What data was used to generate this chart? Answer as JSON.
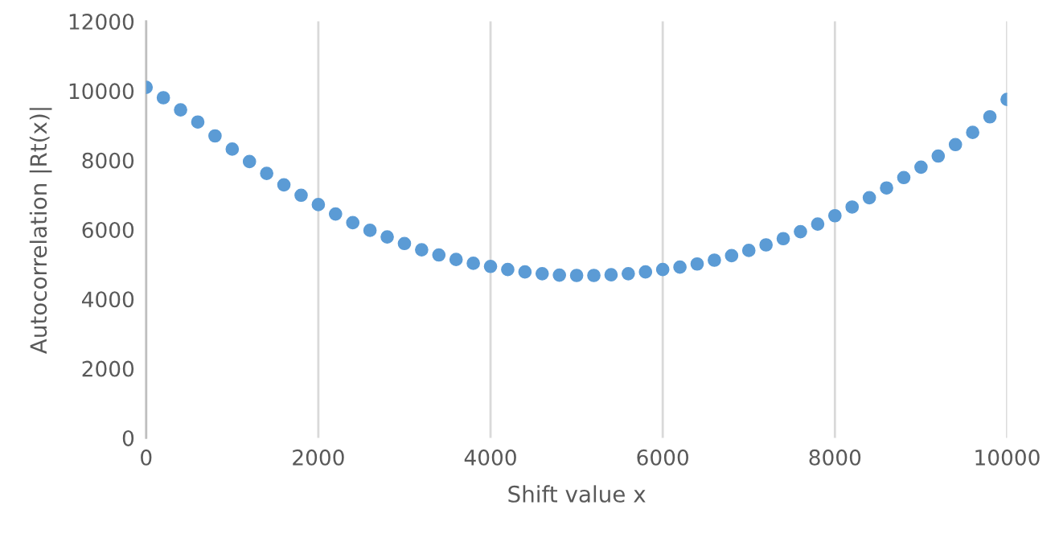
{
  "chart_data": {
    "type": "scatter",
    "xlabel": "Shift value x",
    "ylabel": "Autocorrelation |Rt(x)|",
    "x": [
      0,
      200,
      400,
      600,
      800,
      1000,
      1200,
      1400,
      1600,
      1800,
      2000,
      2200,
      2400,
      2600,
      2800,
      3000,
      3200,
      3400,
      3600,
      3800,
      4000,
      4200,
      4400,
      4600,
      4800,
      5000,
      5200,
      5400,
      5600,
      5800,
      6000,
      6200,
      6400,
      6600,
      6800,
      7000,
      7200,
      7400,
      7600,
      7800,
      8000,
      8200,
      8400,
      8600,
      8800,
      9000,
      9200,
      9400,
      9600,
      9800,
      10000
    ],
    "series": [
      {
        "color": "#5b9bd5",
        "values": [
          10100,
          9800,
          9450,
          9100,
          8700,
          8320,
          7960,
          7620,
          7290,
          6990,
          6720,
          6450,
          6200,
          5980,
          5790,
          5600,
          5420,
          5270,
          5140,
          5030,
          4940,
          4850,
          4780,
          4730,
          4690,
          4680,
          4680,
          4700,
          4730,
          4780,
          4850,
          4920,
          5010,
          5120,
          5250,
          5400,
          5560,
          5740,
          5940,
          6160,
          6400,
          6650,
          6920,
          7200,
          7500,
          7800,
          8120,
          8450,
          8800,
          9250,
          9750
        ]
      }
    ],
    "xlim": [
      0,
      10000
    ],
    "xticks": [
      0,
      2000,
      4000,
      6000,
      8000,
      10000
    ],
    "ylim": [
      0,
      12000
    ],
    "yticks": [
      0,
      2000,
      4000,
      6000,
      8000,
      10000,
      12000
    ],
    "grid": "x",
    "marker": "circle"
  }
}
